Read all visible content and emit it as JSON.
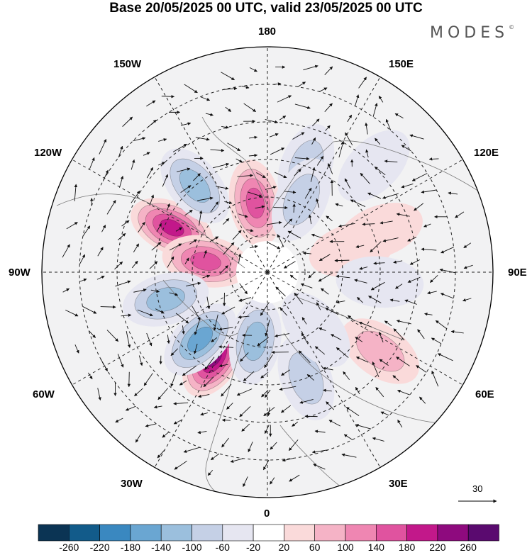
{
  "title": "Base 20/05/2025 00 UTC, valid 23/05/2025 00 UTC",
  "brand": {
    "name": "MODES",
    "mark": "©"
  },
  "meridian_labels": {
    "top": "180",
    "bottom": "0",
    "left": "90W",
    "right": "90E",
    "w150": "150W",
    "e150": "150E",
    "w120": "120W",
    "e120": "120E",
    "w60": "60W",
    "e60": "60E",
    "w30": "30W",
    "e30": "30E"
  },
  "reference_vector": "30",
  "colorbar": {
    "colors": [
      "#0b3454",
      "#125b8a",
      "#3a88c0",
      "#6aa6d2",
      "#9bbfdd",
      "#c5d0e6",
      "#e6e6f1",
      "#ffffff",
      "#fadada",
      "#f5b3c6",
      "#ef86b2",
      "#e0539f",
      "#c2188a",
      "#8e0a7e",
      "#5a0a6f"
    ],
    "labels": [
      "-260",
      "-220",
      "-180",
      "-140",
      "-100",
      "-60",
      "-20",
      "20",
      "60",
      "100",
      "140",
      "180",
      "220",
      "260"
    ]
  },
  "anomalies": [
    {
      "lon": -115,
      "lat": 48,
      "value": 230
    },
    {
      "lon": -100,
      "lat": 65,
      "value": 160
    },
    {
      "lon": -32,
      "lat": 50,
      "value": 240
    },
    {
      "lon": -170,
      "lat": 62,
      "value": 170
    },
    {
      "lon": 55,
      "lat": 35,
      "value": 110
    },
    {
      "lon": 110,
      "lat": 42,
      "value": 60
    },
    {
      "lon": 105,
      "lat": 55,
      "value": 40
    },
    {
      "lon": -140,
      "lat": 45,
      "value": -140
    },
    {
      "lon": -75,
      "lat": 48,
      "value": -140
    },
    {
      "lon": -45,
      "lat": 52,
      "value": -160
    },
    {
      "lon": -10,
      "lat": 62,
      "value": -150
    },
    {
      "lon": 20,
      "lat": 45,
      "value": -80
    },
    {
      "lon": 160,
      "lat": 45,
      "value": -90
    },
    {
      "lon": 155,
      "lat": 58,
      "value": -110
    },
    {
      "lon": 85,
      "lat": 45,
      "value": -60
    },
    {
      "lon": 40,
      "lat": 60,
      "value": -60
    },
    {
      "lon": 135,
      "lat": 30,
      "value": -40
    }
  ]
}
